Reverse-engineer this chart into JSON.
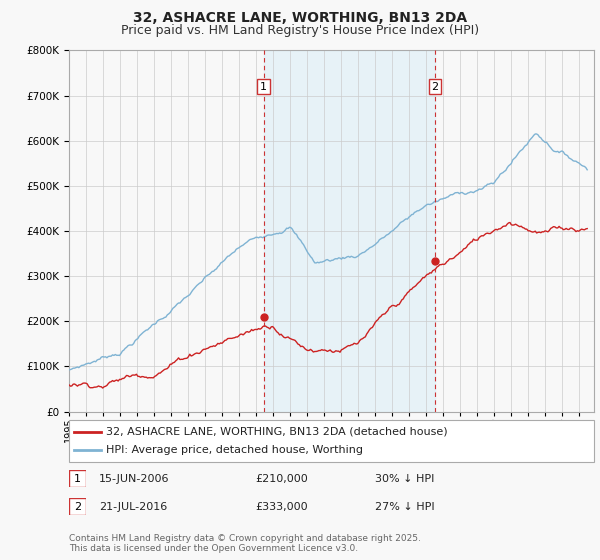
{
  "title": "32, ASHACRE LANE, WORTHING, BN13 2DA",
  "subtitle": "Price paid vs. HM Land Registry's House Price Index (HPI)",
  "ylim": [
    0,
    800000
  ],
  "xlim_start": 1995,
  "xlim_end": 2025.5,
  "sale1_date": 2006.45,
  "sale1_price": 210000,
  "sale1_label": "1",
  "sale2_date": 2016.54,
  "sale2_price": 333000,
  "sale2_label": "2",
  "hpi_color": "#7fb3d3",
  "price_color": "#cc2222",
  "vline_color": "#cc3333",
  "grid_color": "#cccccc",
  "shade_color": "#dceef7",
  "background_color": "#f8f8f8",
  "plot_bg_color": "#f8f8f8",
  "legend_label_price": "32, ASHACRE LANE, WORTHING, BN13 2DA (detached house)",
  "legend_label_hpi": "HPI: Average price, detached house, Worthing",
  "table_row1": [
    "1",
    "15-JUN-2006",
    "£210,000",
    "30% ↓ HPI"
  ],
  "table_row2": [
    "2",
    "21-JUL-2016",
    "£333,000",
    "27% ↓ HPI"
  ],
  "footnote": "Contains HM Land Registry data © Crown copyright and database right 2025.\nThis data is licensed under the Open Government Licence v3.0.",
  "title_fontsize": 10,
  "subtitle_fontsize": 9,
  "tick_fontsize": 7.5,
  "legend_fontsize": 8,
  "table_fontsize": 8,
  "footnote_fontsize": 6.5
}
